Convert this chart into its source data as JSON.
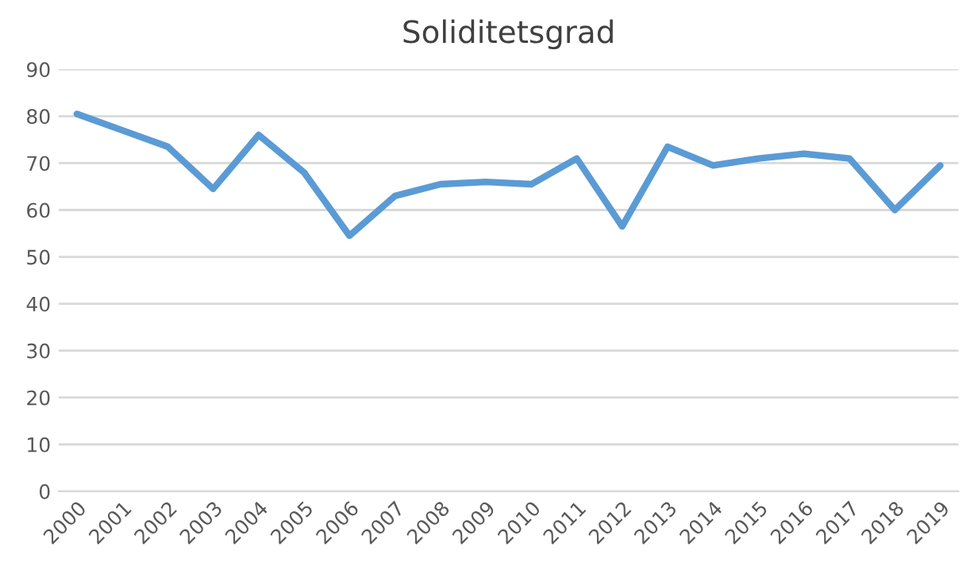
{
  "chart_data": {
    "type": "line",
    "title": "Soliditetsgrad",
    "categories": [
      "2000",
      "2001",
      "2002",
      "2003",
      "2004",
      "2005",
      "2006",
      "2007",
      "2008",
      "2009",
      "2010",
      "2011",
      "2012",
      "2013",
      "2014",
      "2015",
      "2016",
      "2017",
      "2018",
      "2019"
    ],
    "series": [
      {
        "color": "#5b9bd5",
        "values": [
          80.5,
          77,
          73.5,
          64.5,
          76,
          68,
          54.5,
          63,
          65.5,
          66,
          65.5,
          71,
          56.5,
          73.5,
          69.5,
          71,
          72,
          71,
          60,
          69.5
        ]
      }
    ],
    "ylim": [
      0,
      90
    ],
    "yticks": [
      0,
      10,
      20,
      30,
      40,
      50,
      60,
      70,
      80,
      90
    ],
    "grid": "y",
    "legend": false,
    "marker": "none",
    "line_style": "solid"
  }
}
